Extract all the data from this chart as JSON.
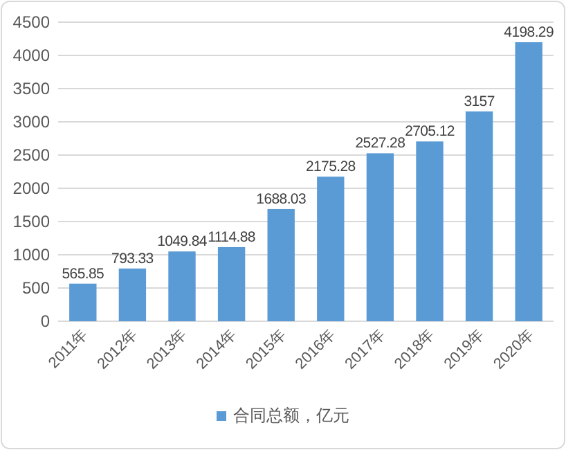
{
  "chart_data": {
    "type": "bar",
    "categories": [
      "2011年",
      "2012年",
      "2013年",
      "2014年",
      "2015年",
      "2016年",
      "2017年",
      "2018年",
      "2019年",
      "2020年"
    ],
    "series": [
      {
        "name": "合同总额，亿元",
        "color": "#5b9bd5",
        "values": [
          565.85,
          793.33,
          1049.84,
          1114.88,
          1688.03,
          2175.28,
          2527.28,
          2705.12,
          3157,
          4198.29
        ]
      }
    ],
    "ylim": [
      0,
      4500
    ],
    "yticks": [
      0,
      500,
      1000,
      1500,
      2000,
      2500,
      3000,
      3500,
      4000,
      4500
    ],
    "grid": "y",
    "legend": "bottom",
    "data_labels": true
  }
}
